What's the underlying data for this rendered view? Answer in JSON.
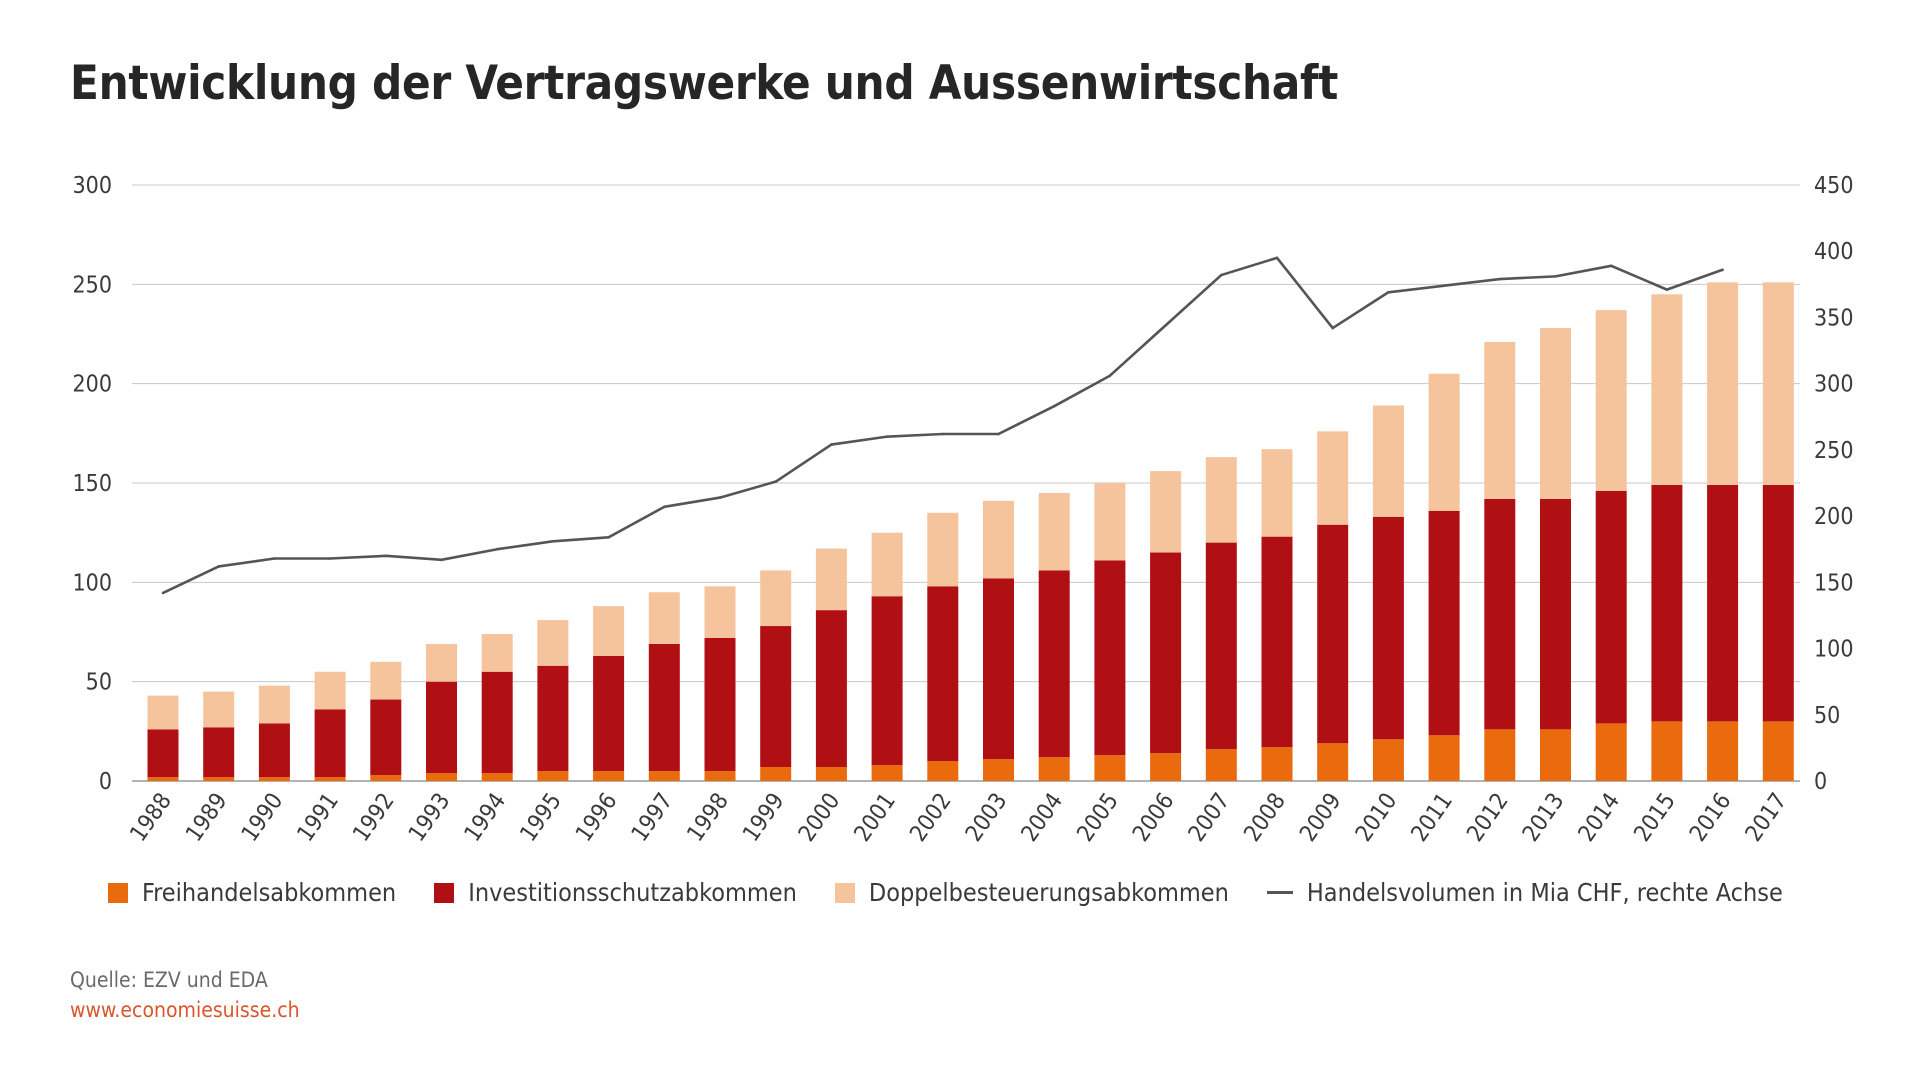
{
  "chart_data": {
    "type": "bar",
    "stacked": true,
    "title": "Entwicklung der Vertragswerke und Aussenwirtschaft",
    "categories": [
      "1988",
      "1989",
      "1990",
      "1991",
      "1992",
      "1993",
      "1994",
      "1995",
      "1996",
      "1997",
      "1998",
      "1999",
      "2000",
      "2001",
      "2002",
      "2003",
      "2004",
      "2005",
      "2006",
      "2007",
      "2008",
      "2009",
      "2010",
      "2011",
      "2012",
      "2013",
      "2014",
      "2015",
      "2016",
      "2017"
    ],
    "y_left": {
      "min": 0,
      "max": 300,
      "ticks": [
        0,
        50,
        100,
        150,
        200,
        250,
        300
      ]
    },
    "y_right": {
      "min": 0,
      "max": 450,
      "ticks": [
        0,
        50,
        100,
        150,
        200,
        250,
        300,
        350,
        400,
        450
      ]
    },
    "grid": true,
    "legend_position": "bottom",
    "series": [
      {
        "name": "Freihandelsabkommen",
        "color": "#ea6a0e",
        "axis": "left",
        "values": [
          2,
          2,
          2,
          2,
          3,
          4,
          4,
          5,
          5,
          5,
          5,
          7,
          7,
          8,
          10,
          11,
          12,
          13,
          14,
          16,
          17,
          19,
          21,
          23,
          26,
          26,
          29,
          30,
          30,
          30
        ]
      },
      {
        "name": "Investitionsschutzabkommen",
        "color": "#b00f14",
        "axis": "left",
        "values": [
          24,
          25,
          27,
          34,
          38,
          46,
          51,
          53,
          58,
          64,
          67,
          71,
          79,
          85,
          88,
          91,
          94,
          98,
          101,
          104,
          106,
          110,
          112,
          113,
          116,
          116,
          117,
          119,
          119,
          119
        ]
      },
      {
        "name": "Doppelbesteuerungsabkommen",
        "color": "#f5c39c",
        "axis": "left",
        "values": [
          17,
          18,
          19,
          19,
          19,
          19,
          19,
          23,
          25,
          26,
          26,
          28,
          31,
          32,
          37,
          39,
          39,
          39,
          41,
          43,
          44,
          47,
          56,
          69,
          79,
          86,
          91,
          96,
          102,
          102
        ]
      },
      {
        "name": "Handelsvolumen in Mia CHF, rechte Achse",
        "color": "#555555",
        "axis": "right",
        "kind": "line",
        "values": [
          142,
          162,
          168,
          168,
          170,
          167,
          175,
          181,
          184,
          207,
          214,
          226,
          254,
          260,
          262,
          262,
          283,
          306,
          344,
          382,
          395,
          342,
          369,
          374,
          379,
          381,
          389,
          371,
          386,
          null
        ]
      }
    ]
  },
  "source": "Quelle: EZV und EDA",
  "url": "www.economiesuisse.ch"
}
